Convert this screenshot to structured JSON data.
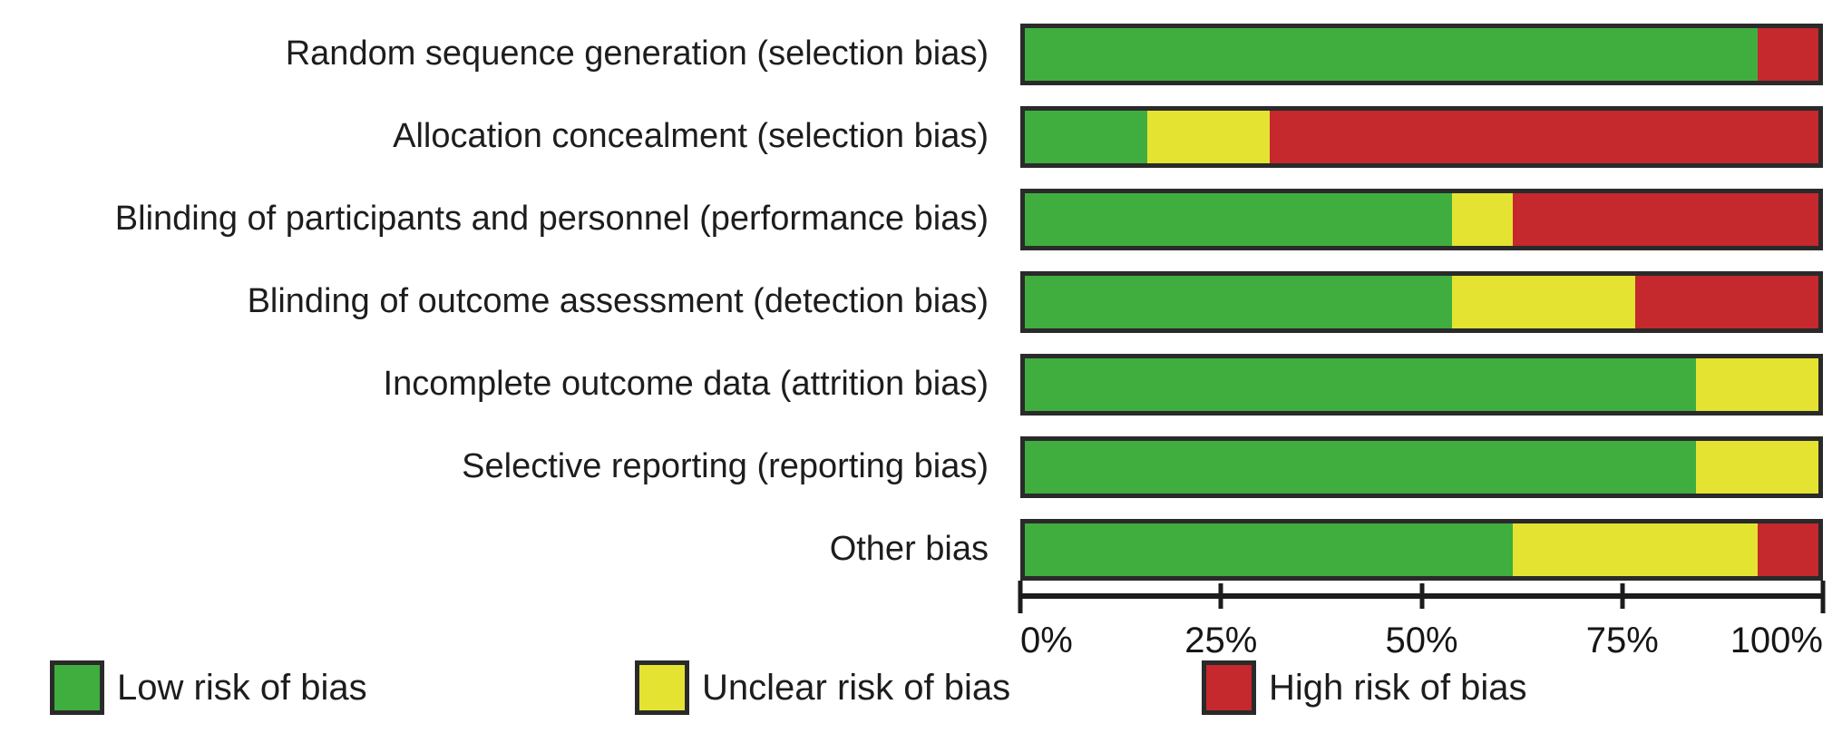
{
  "figure": {
    "background": "#ffffff",
    "bar_border_color": "#2a2a2a",
    "axis_color": "#1c1c1c",
    "text_color": "#1d1d1d"
  },
  "chart_data": {
    "type": "bar",
    "orientation": "horizontal-stacked",
    "title": "",
    "xlabel": "",
    "ylabel": "",
    "xlim": [
      0,
      100
    ],
    "grid": false,
    "categories": [
      "Random sequence generation (selection bias)",
      "Allocation concealment (selection bias)",
      "Blinding of participants and personnel (performance bias)",
      "Blinding of outcome assessment (detection bias)",
      "Incomplete outcome data (attrition bias)",
      "Selective reporting (reporting bias)",
      "Other bias"
    ],
    "series": [
      {
        "name": "Low risk of bias",
        "color": "#3fae3f",
        "values": [
          92.3,
          15.4,
          53.8,
          53.8,
          84.6,
          84.6,
          61.5
        ]
      },
      {
        "name": "Unclear risk of bias",
        "color": "#e5e331",
        "values": [
          0,
          15.4,
          7.7,
          23.1,
          15.4,
          15.4,
          30.8
        ]
      },
      {
        "name": "High risk of bias",
        "color": "#c5282d",
        "values": [
          7.7,
          69.2,
          38.5,
          23.1,
          0,
          0,
          7.7
        ]
      }
    ],
    "x_axis": {
      "tick_values": [
        0,
        25,
        50,
        75,
        100
      ],
      "tick_labels": [
        "0%",
        "25%",
        "50%",
        "75%",
        "100%"
      ]
    },
    "legend": {
      "position": "bottom",
      "items": [
        {
          "label": "Low risk of bias",
          "color": "#3fae3f"
        },
        {
          "label": "Unclear risk of bias",
          "color": "#e5e331"
        },
        {
          "label": "High risk of bias",
          "color": "#c5282d"
        }
      ]
    }
  }
}
